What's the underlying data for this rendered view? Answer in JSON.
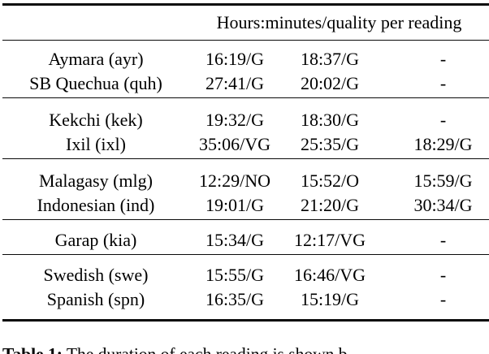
{
  "colors": {
    "background": "#ffffff",
    "text": "#000000",
    "rule": "#0a0a0a"
  },
  "table": {
    "header_label": "Hours:minutes/quality per reading",
    "columns": [
      "language",
      "reading1",
      "reading2",
      "reading3"
    ],
    "rows": [
      {
        "lang": "Aymara (ayr)",
        "r1": "16:19/G",
        "r2": "18:37/G",
        "r3": "-"
      },
      {
        "lang": "SB Quechua (quh)",
        "r1": "27:41/G",
        "r2": "20:02/G",
        "r3": "-"
      },
      {
        "lang": "Kekchi (kek)",
        "r1": "19:32/G",
        "r2": "18:30/G",
        "r3": "-"
      },
      {
        "lang": "Ixil (ixl)",
        "r1": "35:06/VG",
        "r2": "25:35/G",
        "r3": "18:29/G"
      },
      {
        "lang": "Malagasy (mlg)",
        "r1": "12:29/NO",
        "r2": "15:52/O",
        "r3": "15:59/G"
      },
      {
        "lang": "Indonesian (ind)",
        "r1": "19:01/G",
        "r2": "21:20/G",
        "r3": "30:34/G"
      },
      {
        "lang": "Garap (kia)",
        "r1": "15:34/G",
        "r2": "12:17/VG",
        "r3": "-"
      },
      {
        "lang": "Swedish (swe)",
        "r1": "15:55/G",
        "r2": "16:46/VG",
        "r3": "-"
      },
      {
        "lang": "Spanish (spn)",
        "r1": "16:35/G",
        "r2": "15:19/G",
        "r3": "-"
      }
    ]
  },
  "caption": {
    "label": "Table 1:",
    "text": " The duration of each reading is shown b"
  }
}
